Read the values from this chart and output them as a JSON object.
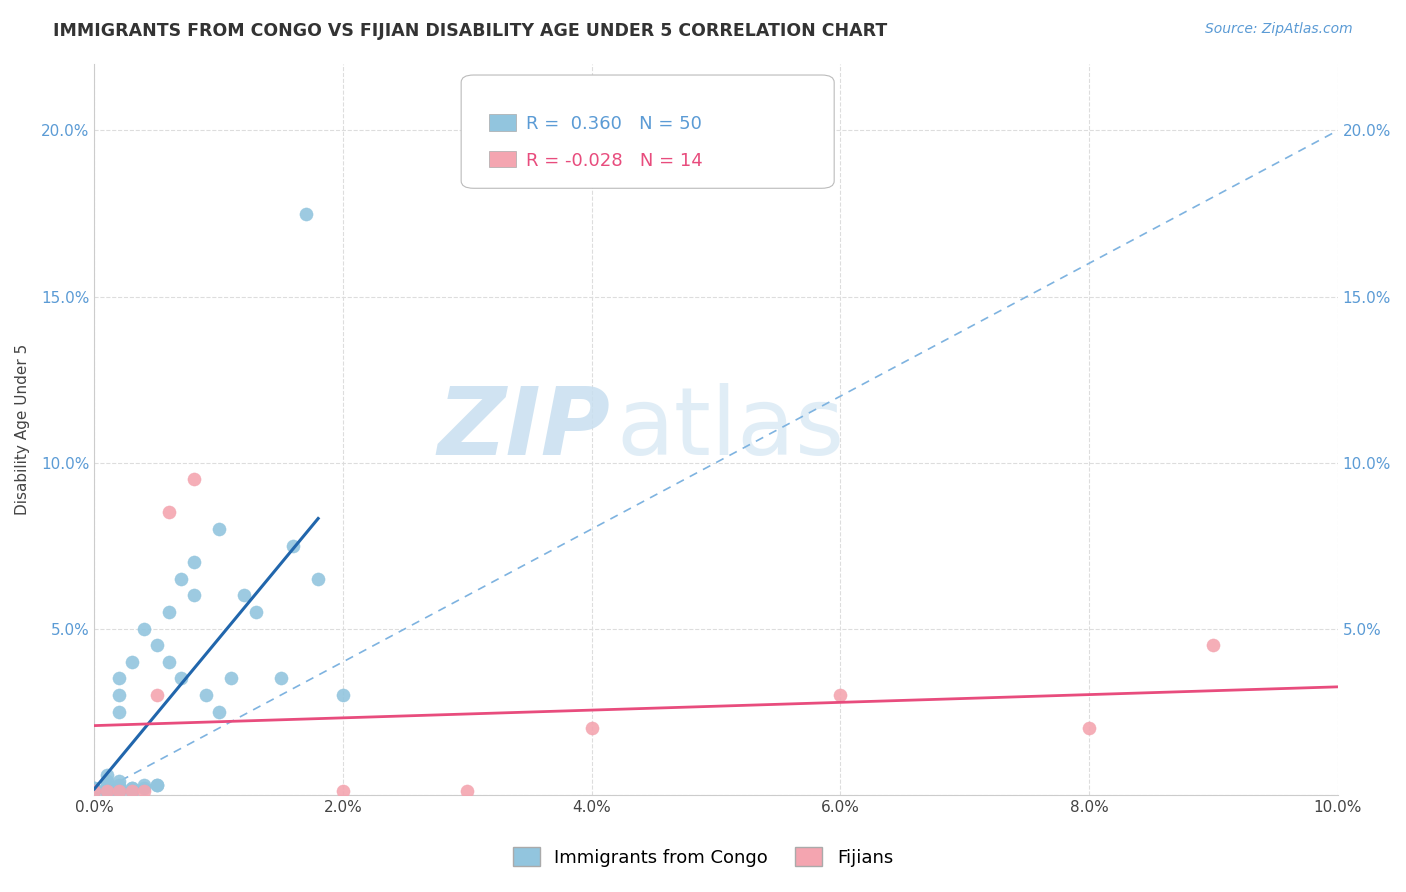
{
  "title": "IMMIGRANTS FROM CONGO VS FIJIAN DISABILITY AGE UNDER 5 CORRELATION CHART",
  "source": "Source: ZipAtlas.com",
  "ylabel_label": "Disability Age Under 5",
  "R_congo": 0.36,
  "N_congo": 50,
  "R_fijian": -0.028,
  "N_fijian": 14,
  "xlim": [
    0.0,
    0.1
  ],
  "ylim": [
    0.0,
    0.22
  ],
  "xticks": [
    0.0,
    0.02,
    0.04,
    0.06,
    0.08,
    0.1
  ],
  "yticks": [
    0.0,
    0.05,
    0.1,
    0.15,
    0.2
  ],
  "congo_color": "#92c5de",
  "fijian_color": "#f4a5b0",
  "trendline_congo_color": "#2166ac",
  "trendline_fijian_color": "#e84c7d",
  "diag_line_color": "#7eb3e0",
  "watermark_zip": "ZIP",
  "watermark_atlas": "atlas",
  "watermark_color_zip": "#c8dff0",
  "watermark_color_atlas": "#c8dff0",
  "background_color": "#ffffff",
  "grid_color": "#dddddd",
  "ytick_color": "#5b9bd5",
  "xtick_color": "#444444",
  "title_color": "#333333",
  "source_color": "#5b9bd5",
  "legend_label_congo": "Immigrants from Congo",
  "legend_label_fijian": "Fijians",
  "congo_x": [
    0.0,
    0.0,
    0.0,
    0.0,
    0.001,
    0.001,
    0.001,
    0.001,
    0.001,
    0.001,
    0.001,
    0.001,
    0.001,
    0.002,
    0.002,
    0.002,
    0.002,
    0.002,
    0.002,
    0.002,
    0.002,
    0.003,
    0.003,
    0.003,
    0.003,
    0.003,
    0.004,
    0.004,
    0.004,
    0.005,
    0.005,
    0.005,
    0.006,
    0.006,
    0.007,
    0.007,
    0.008,
    0.008,
    0.009,
    0.01,
    0.01,
    0.011,
    0.012,
    0.013,
    0.015,
    0.016,
    0.017,
    0.018,
    0.02,
    0.002
  ],
  "congo_y": [
    0.001,
    0.001,
    0.002,
    0.002,
    0.001,
    0.001,
    0.001,
    0.001,
    0.002,
    0.002,
    0.003,
    0.004,
    0.006,
    0.001,
    0.001,
    0.002,
    0.002,
    0.003,
    0.004,
    0.03,
    0.035,
    0.001,
    0.001,
    0.002,
    0.002,
    0.04,
    0.002,
    0.003,
    0.05,
    0.003,
    0.003,
    0.045,
    0.04,
    0.055,
    0.035,
    0.065,
    0.06,
    0.07,
    0.03,
    0.025,
    0.08,
    0.035,
    0.06,
    0.055,
    0.035,
    0.075,
    0.175,
    0.065,
    0.03,
    0.025
  ],
  "fijian_x": [
    0.0,
    0.001,
    0.002,
    0.003,
    0.004,
    0.005,
    0.006,
    0.008,
    0.02,
    0.03,
    0.04,
    0.06,
    0.08,
    0.09
  ],
  "fijian_y": [
    0.001,
    0.001,
    0.001,
    0.001,
    0.001,
    0.03,
    0.085,
    0.095,
    0.001,
    0.001,
    0.02,
    0.03,
    0.02,
    0.045
  ]
}
